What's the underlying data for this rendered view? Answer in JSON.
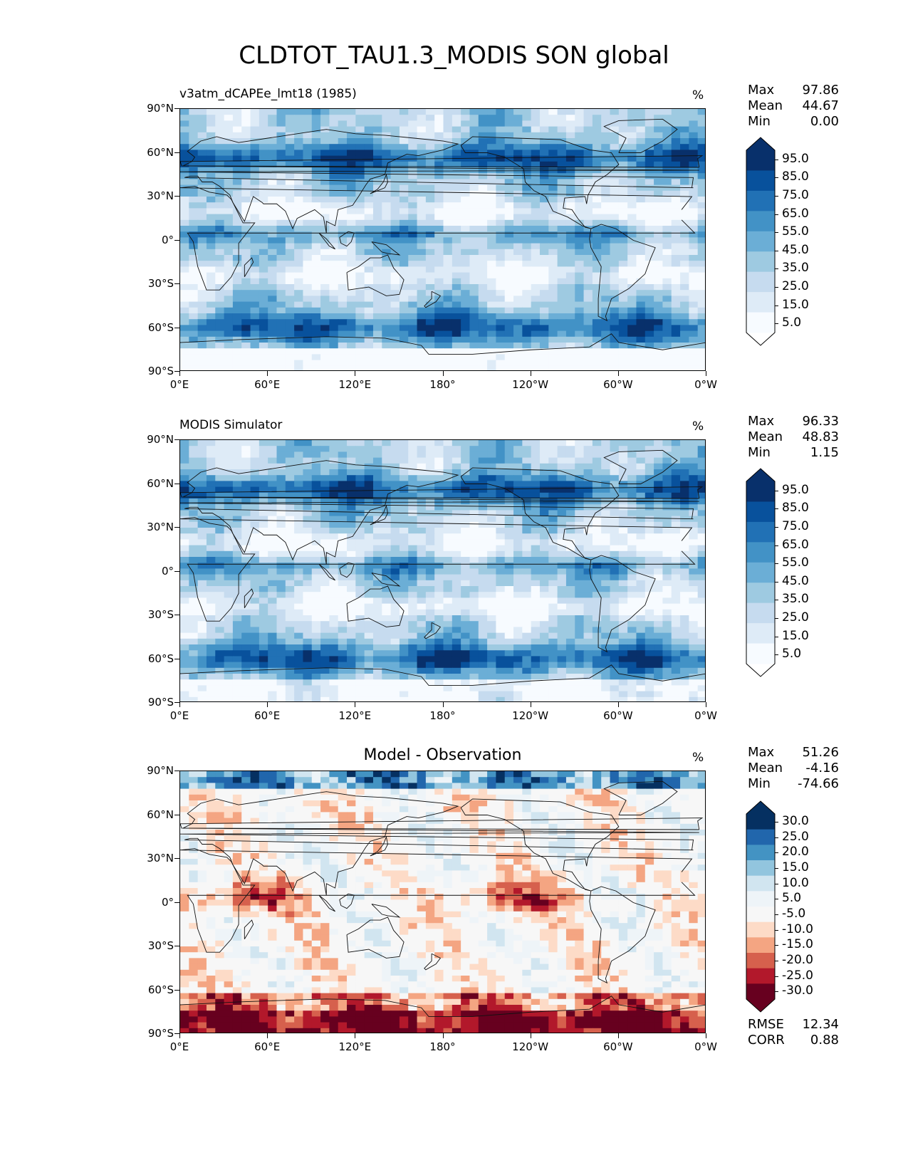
{
  "title": "CLDTOT_TAU1.3_MODIS SON global",
  "lat_labels": [
    "90°N",
    "60°N",
    "30°N",
    "0°",
    "30°S",
    "60°S",
    "90°S"
  ],
  "lon_labels": [
    "0°E",
    "60°E",
    "120°E",
    "180°",
    "120°W",
    "60°W",
    "0°W"
  ],
  "panels": [
    {
      "title": "v3atm_dCAPEe_lmt18 (1985)",
      "units": "%",
      "stats": [
        {
          "label": "Max",
          "value": "97.86"
        },
        {
          "label": "Mean",
          "value": "44.67"
        },
        {
          "label": "Min",
          "value": "0.00"
        }
      ],
      "colorbar_labels": [
        "95.0",
        "85.0",
        "75.0",
        "65.0",
        "55.0",
        "45.0",
        "35.0",
        "25.0",
        "15.0",
        "5.0"
      ],
      "colors": [
        "#08306b",
        "#08519c",
        "#2171b5",
        "#4292c6",
        "#6baed6",
        "#9ecae1",
        "#c6dbef",
        "#deebf7",
        "#f7fbff"
      ]
    },
    {
      "title": "MODIS Simulator",
      "units": "%",
      "stats": [
        {
          "label": "Max",
          "value": "96.33"
        },
        {
          "label": "Mean",
          "value": "48.83"
        },
        {
          "label": "Min",
          "value": "1.15"
        }
      ],
      "colorbar_labels": [
        "95.0",
        "85.0",
        "75.0",
        "65.0",
        "55.0",
        "45.0",
        "35.0",
        "25.0",
        "15.0",
        "5.0"
      ],
      "colors": [
        "#08306b",
        "#08519c",
        "#2171b5",
        "#4292c6",
        "#6baed6",
        "#9ecae1",
        "#c6dbef",
        "#deebf7",
        "#f7fbff"
      ]
    },
    {
      "title": "Model - Observation",
      "units": "%",
      "stats": [
        {
          "label": "Max",
          "value": "51.26"
        },
        {
          "label": "Mean",
          "value": "-4.16"
        },
        {
          "label": "Min",
          "value": "-74.66"
        }
      ],
      "colorbar_labels": [
        "30.0",
        "25.0",
        "20.0",
        "15.0",
        "10.0",
        "5.0",
        "-5.0",
        "-10.0",
        "-15.0",
        "-20.0",
        "-25.0",
        "-30.0"
      ],
      "colors": [
        "#053061",
        "#2166ac",
        "#4393c3",
        "#92c5de",
        "#d1e5f0",
        "#eef4f8",
        "#f7f7f7",
        "#fddbc7",
        "#f4a582",
        "#d6604d",
        "#b2182b",
        "#67001f"
      ],
      "metrics": [
        {
          "label": "RMSE",
          "value": "12.34"
        },
        {
          "label": "CORR",
          "value": "0.88"
        }
      ]
    }
  ]
}
